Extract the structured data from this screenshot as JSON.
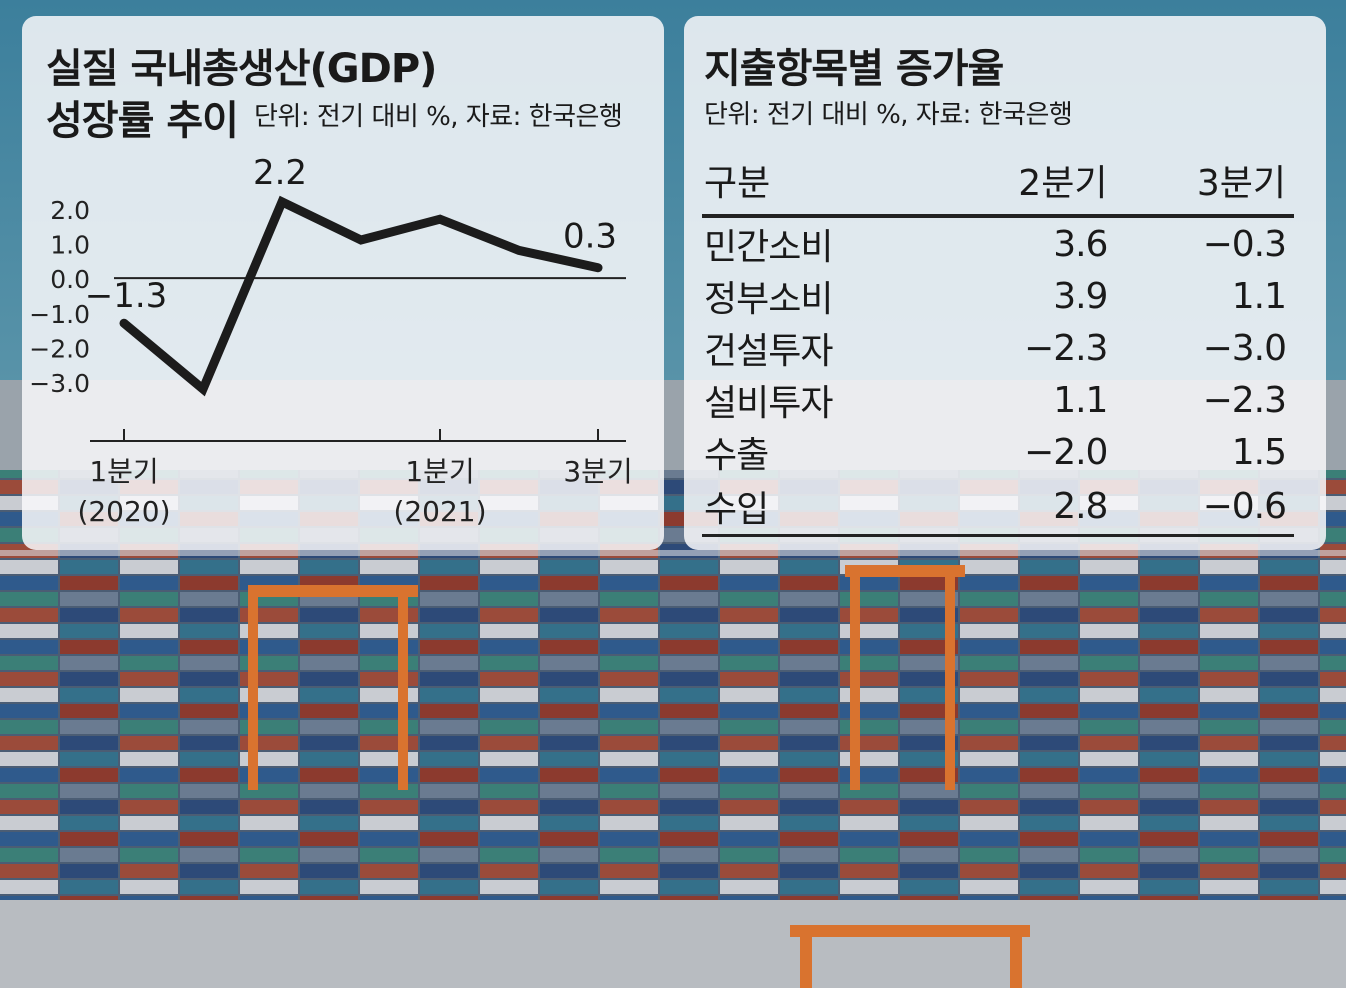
{
  "left_panel": {
    "title_line1": "실질 국내총생산(GDP)",
    "title_line2": "성장률 추이",
    "unit_note": "단위: 전기 대비 %, 자료: 한국은행"
  },
  "right_panel": {
    "title": "지출항목별 증가율",
    "unit_note": "단위: 전기 대비 %, 자료: 한국은행"
  },
  "chart_data": [
    {
      "type": "line",
      "title": "실질 국내총생산(GDP) 성장률 추이",
      "subtitle": "단위: 전기 대비 %, 자료: 한국은행",
      "x": [
        "2020 Q1",
        "2020 Q2",
        "2020 Q3",
        "2020 Q4",
        "2021 Q1",
        "2021 Q2",
        "2021 Q3"
      ],
      "y": [
        -1.3,
        -3.2,
        2.2,
        1.1,
        1.7,
        0.8,
        0.3
      ],
      "data_labels": [
        {
          "index": 0,
          "text": "−1.3"
        },
        {
          "index": 2,
          "text": "2.2"
        },
        {
          "index": 6,
          "text": "0.3"
        }
      ],
      "ylim": [
        -3.4,
        2.6
      ],
      "y_ticks": [
        "2.0",
        "1.0",
        "0.0",
        "−1.0",
        "−2.0",
        "−3.0"
      ],
      "y_tick_values": [
        2,
        1,
        0,
        -1,
        -2,
        -3
      ],
      "x_tick_labels": [
        {
          "index": 0,
          "line1": "1분기",
          "line2": "(2020)"
        },
        {
          "index": 4,
          "line1": "1분기",
          "line2": "(2021)"
        },
        {
          "index": 6,
          "line1": "3분기",
          "line2": ""
        }
      ],
      "series_color": "#1c1c1c",
      "grid": false
    },
    {
      "type": "table",
      "title": "지출항목별 증가율",
      "subtitle": "단위: 전기 대비 %, 자료: 한국은행",
      "columns": [
        "구분",
        "2분기",
        "3분기"
      ],
      "rows": [
        [
          "민간소비",
          "3.6",
          "−0.3"
        ],
        [
          "정부소비",
          "3.9",
          "1.1"
        ],
        [
          "건설투자",
          "−2.3",
          "−3.0"
        ],
        [
          "설비투자",
          "1.1",
          "−2.3"
        ],
        [
          "수출",
          "−2.0",
          "1.5"
        ],
        [
          "수입",
          "2.8",
          "−0.6"
        ]
      ]
    }
  ]
}
